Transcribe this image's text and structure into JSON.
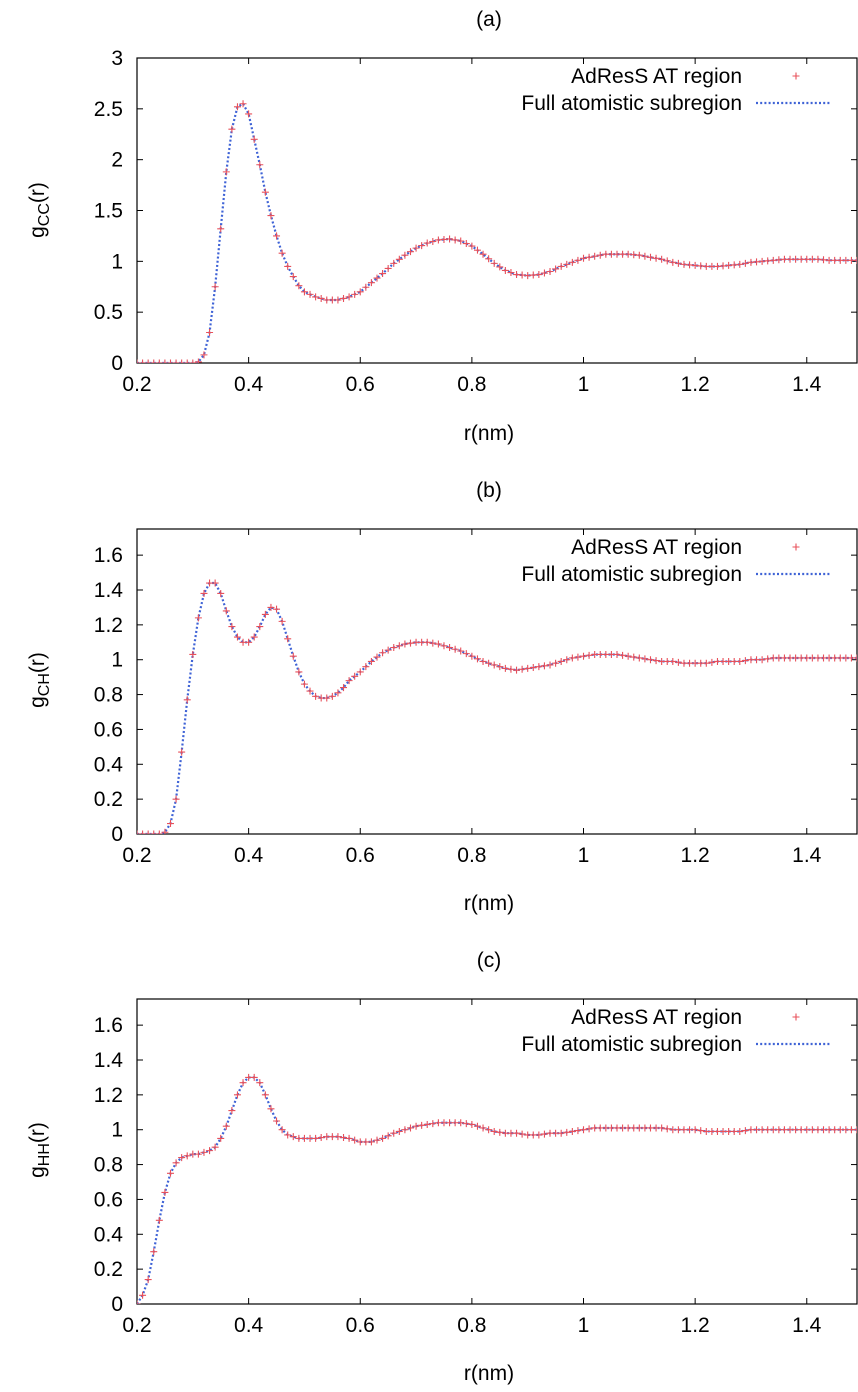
{
  "chart_data": [
    {
      "type": "scatter",
      "panel_label": "(a)",
      "title": "",
      "xlabel": "r(nm)",
      "ylabel_main": "g",
      "ylabel_sub": "CC",
      "ylabel_tail": "(r)",
      "xlim": [
        0.2,
        1.49
      ],
      "ylim": [
        0,
        3
      ],
      "xticks": [
        0.2,
        0.4,
        0.6,
        0.8,
        1,
        1.2,
        1.4
      ],
      "xtick_labels": [
        "0.2",
        "0.4",
        "0.6",
        "0.8",
        "1",
        "1.2",
        "1.4"
      ],
      "yticks": [
        0,
        0.5,
        1,
        1.5,
        2,
        2.5,
        3
      ],
      "ytick_labels": [
        "0",
        "0.5",
        "1",
        "1.5",
        "2",
        "2.5",
        "3"
      ],
      "grid": false,
      "legend_position": "top-right",
      "series": [
        {
          "name": "AdResS AT region",
          "style": "plus-markers",
          "color": "#e8505a"
        },
        {
          "name": "Full atomistic subregion",
          "style": "dotted-line",
          "color": "#3f63d6"
        }
      ],
      "curve": {
        "x": [
          0.2,
          0.22,
          0.24,
          0.26,
          0.28,
          0.3,
          0.31,
          0.32,
          0.33,
          0.34,
          0.35,
          0.36,
          0.37,
          0.38,
          0.39,
          0.4,
          0.41,
          0.42,
          0.43,
          0.44,
          0.45,
          0.46,
          0.47,
          0.48,
          0.49,
          0.5,
          0.52,
          0.54,
          0.56,
          0.58,
          0.6,
          0.62,
          0.64,
          0.66,
          0.68,
          0.7,
          0.72,
          0.74,
          0.76,
          0.78,
          0.8,
          0.82,
          0.84,
          0.86,
          0.88,
          0.9,
          0.92,
          0.94,
          0.96,
          0.98,
          1.0,
          1.02,
          1.04,
          1.06,
          1.08,
          1.1,
          1.12,
          1.14,
          1.16,
          1.18,
          1.2,
          1.22,
          1.24,
          1.26,
          1.28,
          1.3,
          1.32,
          1.34,
          1.36,
          1.38,
          1.4,
          1.42,
          1.44,
          1.46,
          1.49
        ],
        "y": [
          0,
          0,
          0,
          0,
          0,
          0,
          0.01,
          0.08,
          0.3,
          0.75,
          1.32,
          1.88,
          2.3,
          2.52,
          2.55,
          2.45,
          2.2,
          1.95,
          1.68,
          1.45,
          1.25,
          1.08,
          0.95,
          0.85,
          0.76,
          0.7,
          0.65,
          0.62,
          0.62,
          0.65,
          0.7,
          0.79,
          0.88,
          0.98,
          1.06,
          1.13,
          1.18,
          1.21,
          1.22,
          1.2,
          1.15,
          1.07,
          0.98,
          0.91,
          0.87,
          0.86,
          0.87,
          0.9,
          0.95,
          0.99,
          1.03,
          1.05,
          1.07,
          1.07,
          1.07,
          1.06,
          1.04,
          1.02,
          0.99,
          0.97,
          0.96,
          0.95,
          0.95,
          0.96,
          0.97,
          0.99,
          1.0,
          1.01,
          1.02,
          1.02,
          1.02,
          1.02,
          1.01,
          1.01,
          1.01
        ]
      }
    },
    {
      "type": "scatter",
      "panel_label": "(b)",
      "title": "",
      "xlabel": "r(nm)",
      "ylabel_main": "g",
      "ylabel_sub": "CH",
      "ylabel_tail": "(r)",
      "xlim": [
        0.2,
        1.49
      ],
      "ylim": [
        0,
        1.75
      ],
      "xticks": [
        0.2,
        0.4,
        0.6,
        0.8,
        1,
        1.2,
        1.4
      ],
      "xtick_labels": [
        "0.2",
        "0.4",
        "0.6",
        "0.8",
        "1",
        "1.2",
        "1.4"
      ],
      "yticks": [
        0,
        0.2,
        0.4,
        0.6,
        0.8,
        1,
        1.2,
        1.4,
        1.6
      ],
      "ytick_labels": [
        "0",
        "0.2",
        "0.4",
        "0.6",
        "0.8",
        "1",
        "1.2",
        "1.4",
        "1.6"
      ],
      "grid": false,
      "legend_position": "top-right",
      "series": [
        {
          "name": "AdResS AT region",
          "style": "plus-markers",
          "color": "#e8505a"
        },
        {
          "name": "Full atomistic subregion",
          "style": "dotted-line",
          "color": "#3f63d6"
        }
      ],
      "curve": {
        "x": [
          0.2,
          0.22,
          0.24,
          0.25,
          0.26,
          0.27,
          0.28,
          0.29,
          0.3,
          0.31,
          0.32,
          0.33,
          0.34,
          0.35,
          0.36,
          0.37,
          0.38,
          0.39,
          0.4,
          0.41,
          0.42,
          0.43,
          0.44,
          0.45,
          0.46,
          0.47,
          0.48,
          0.49,
          0.5,
          0.51,
          0.52,
          0.53,
          0.54,
          0.55,
          0.56,
          0.57,
          0.58,
          0.6,
          0.62,
          0.64,
          0.66,
          0.68,
          0.7,
          0.72,
          0.74,
          0.76,
          0.78,
          0.8,
          0.82,
          0.84,
          0.86,
          0.88,
          0.9,
          0.92,
          0.94,
          0.96,
          0.98,
          1.0,
          1.02,
          1.04,
          1.06,
          1.08,
          1.1,
          1.12,
          1.14,
          1.16,
          1.18,
          1.2,
          1.22,
          1.24,
          1.26,
          1.28,
          1.3,
          1.32,
          1.34,
          1.36,
          1.38,
          1.4,
          1.42,
          1.44,
          1.46,
          1.49
        ],
        "y": [
          0,
          0,
          0,
          0.01,
          0.06,
          0.2,
          0.47,
          0.77,
          1.03,
          1.24,
          1.38,
          1.44,
          1.44,
          1.38,
          1.28,
          1.19,
          1.13,
          1.1,
          1.1,
          1.13,
          1.19,
          1.26,
          1.3,
          1.29,
          1.22,
          1.12,
          1.02,
          0.93,
          0.86,
          0.82,
          0.79,
          0.78,
          0.78,
          0.79,
          0.81,
          0.84,
          0.88,
          0.93,
          0.99,
          1.04,
          1.07,
          1.09,
          1.1,
          1.1,
          1.09,
          1.07,
          1.05,
          1.02,
          0.99,
          0.97,
          0.95,
          0.94,
          0.95,
          0.96,
          0.97,
          0.99,
          1.01,
          1.02,
          1.03,
          1.03,
          1.03,
          1.02,
          1.01,
          1.0,
          0.99,
          0.99,
          0.98,
          0.98,
          0.98,
          0.99,
          0.99,
          0.99,
          1.0,
          1.0,
          1.01,
          1.01,
          1.01,
          1.01,
          1.01,
          1.01,
          1.01,
          1.01
        ]
      }
    },
    {
      "type": "scatter",
      "panel_label": "(c)",
      "title": "",
      "xlabel": "r(nm)",
      "ylabel_main": "g",
      "ylabel_sub": "HH",
      "ylabel_tail": "(r)",
      "xlim": [
        0.2,
        1.49
      ],
      "ylim": [
        0,
        1.75
      ],
      "xticks": [
        0.2,
        0.4,
        0.6,
        0.8,
        1,
        1.2,
        1.4
      ],
      "xtick_labels": [
        "0.2",
        "0.4",
        "0.6",
        "0.8",
        "1",
        "1.2",
        "1.4"
      ],
      "yticks": [
        0,
        0.2,
        0.4,
        0.6,
        0.8,
        1,
        1.2,
        1.4,
        1.6
      ],
      "ytick_labels": [
        "0",
        "0.2",
        "0.4",
        "0.6",
        "0.8",
        "1",
        "1.2",
        "1.4",
        "1.6"
      ],
      "grid": false,
      "legend_position": "top-right",
      "series": [
        {
          "name": "AdResS AT region",
          "style": "plus-markers",
          "color": "#e8505a"
        },
        {
          "name": "Full atomistic subregion",
          "style": "dotted-line",
          "color": "#3f63d6"
        }
      ],
      "curve": {
        "x": [
          0.2,
          0.21,
          0.22,
          0.23,
          0.24,
          0.25,
          0.26,
          0.27,
          0.28,
          0.29,
          0.3,
          0.31,
          0.32,
          0.33,
          0.34,
          0.35,
          0.36,
          0.37,
          0.38,
          0.39,
          0.4,
          0.41,
          0.42,
          0.43,
          0.44,
          0.45,
          0.46,
          0.47,
          0.48,
          0.49,
          0.5,
          0.52,
          0.54,
          0.56,
          0.58,
          0.6,
          0.62,
          0.64,
          0.66,
          0.68,
          0.7,
          0.72,
          0.74,
          0.76,
          0.78,
          0.8,
          0.82,
          0.84,
          0.86,
          0.88,
          0.9,
          0.92,
          0.94,
          0.96,
          0.98,
          1.0,
          1.02,
          1.04,
          1.06,
          1.08,
          1.1,
          1.12,
          1.14,
          1.16,
          1.18,
          1.2,
          1.22,
          1.24,
          1.26,
          1.28,
          1.3,
          1.32,
          1.34,
          1.36,
          1.38,
          1.4,
          1.42,
          1.44,
          1.46,
          1.49
        ],
        "y": [
          0,
          0.05,
          0.14,
          0.3,
          0.48,
          0.64,
          0.75,
          0.81,
          0.84,
          0.85,
          0.86,
          0.86,
          0.87,
          0.88,
          0.9,
          0.95,
          1.02,
          1.11,
          1.2,
          1.27,
          1.3,
          1.3,
          1.27,
          1.2,
          1.12,
          1.05,
          1.0,
          0.97,
          0.96,
          0.95,
          0.95,
          0.95,
          0.96,
          0.96,
          0.95,
          0.93,
          0.93,
          0.95,
          0.98,
          1.0,
          1.02,
          1.03,
          1.04,
          1.04,
          1.04,
          1.03,
          1.01,
          0.99,
          0.98,
          0.98,
          0.97,
          0.97,
          0.98,
          0.98,
          0.99,
          1.0,
          1.01,
          1.01,
          1.01,
          1.01,
          1.01,
          1.01,
          1.01,
          1.0,
          1.0,
          1.0,
          0.99,
          0.99,
          0.99,
          0.99,
          1.0,
          1.0,
          1.0,
          1.0,
          1.0,
          1.0,
          1.0,
          1.0,
          1.0,
          1.0
        ]
      }
    }
  ]
}
